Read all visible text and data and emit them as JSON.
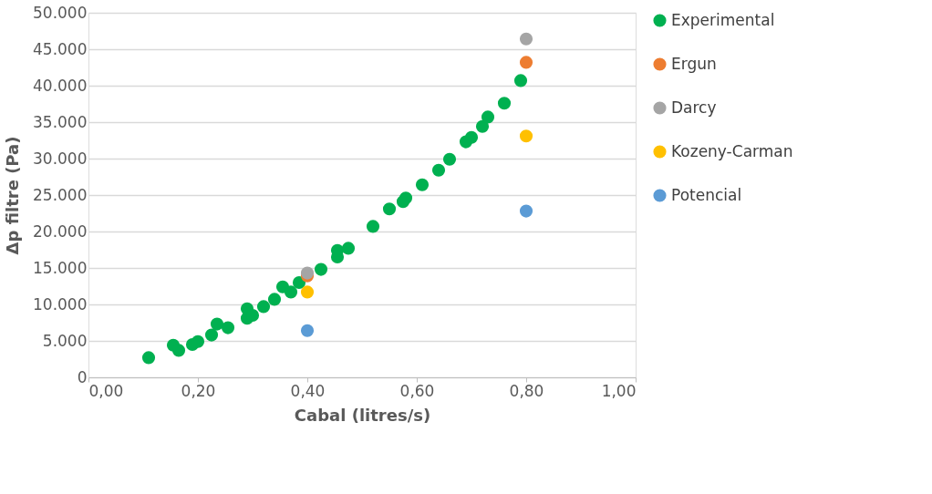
{
  "chart_data": {
    "type": "scatter",
    "xlabel": "Cabal (litres/s)",
    "ylabel": "Δp filtre (Pa)",
    "xlim": [
      0,
      1
    ],
    "ylim": [
      0,
      50000
    ],
    "xticks": [
      {
        "value": 0,
        "label": "0,00"
      },
      {
        "value": 0.2,
        "label": "0,20"
      },
      {
        "value": 0.4,
        "label": "0,40"
      },
      {
        "value": 0.6,
        "label": "0,60"
      },
      {
        "value": 0.8,
        "label": "0,80"
      },
      {
        "value": 1,
        "label": "1,00"
      }
    ],
    "yticks": [
      0,
      {
        "value": 5000,
        "label": "5.000"
      },
      {
        "value": 10000,
        "label": "10.000"
      },
      {
        "value": 15000,
        "label": "15.000"
      },
      {
        "value": 20000,
        "label": "20.000"
      },
      {
        "value": 25000,
        "label": "25.000"
      },
      {
        "value": 30000,
        "label": "30.000"
      },
      {
        "value": 35000,
        "label": "35.000"
      },
      {
        "value": 40000,
        "label": "40.000"
      },
      {
        "value": 45000,
        "label": "45.000"
      },
      {
        "value": 50000,
        "label": "50.000"
      }
    ],
    "grid": "y",
    "legend": "right",
    "marker": "circle",
    "series": [
      {
        "name": "Experimental",
        "color": "#00b050",
        "x": [
          0.11,
          0.155,
          0.165,
          0.19,
          0.2,
          0.225,
          0.235,
          0.255,
          0.29,
          0.29,
          0.3,
          0.32,
          0.34,
          0.355,
          0.37,
          0.385,
          0.4,
          0.425,
          0.455,
          0.455,
          0.475,
          0.52,
          0.55,
          0.575,
          0.58,
          0.61,
          0.64,
          0.66,
          0.69,
          0.7,
          0.72,
          0.73,
          0.76,
          0.79
        ],
        "values": [
          2700,
          4400,
          3700,
          4500,
          4900,
          5800,
          7300,
          6800,
          8100,
          9400,
          8500,
          9700,
          10700,
          12400,
          11700,
          13000,
          null,
          14800,
          16500,
          17400,
          17700,
          20700,
          23100,
          24100,
          24600,
          26400,
          28400,
          29900,
          32300,
          32900,
          34400,
          35700,
          37600,
          40700
        ]
      },
      {
        "name": "Ergun",
        "color": "#ed7d31",
        "x": [
          0.4,
          0.8
        ],
        "values": [
          13900,
          43200
        ]
      },
      {
        "name": "Darcy",
        "color": "#a5a5a5",
        "x": [
          0.4,
          0.8
        ],
        "values": [
          14300,
          46400
        ]
      },
      {
        "name": "Kozeny-Carman",
        "color": "#ffc000",
        "x": [
          0.4,
          0.8
        ],
        "values": [
          11700,
          33100
        ]
      },
      {
        "name": "Potencial",
        "color": "#5b9bd5",
        "x": [
          0.4,
          0.8
        ],
        "values": [
          6400,
          22800
        ]
      }
    ]
  }
}
